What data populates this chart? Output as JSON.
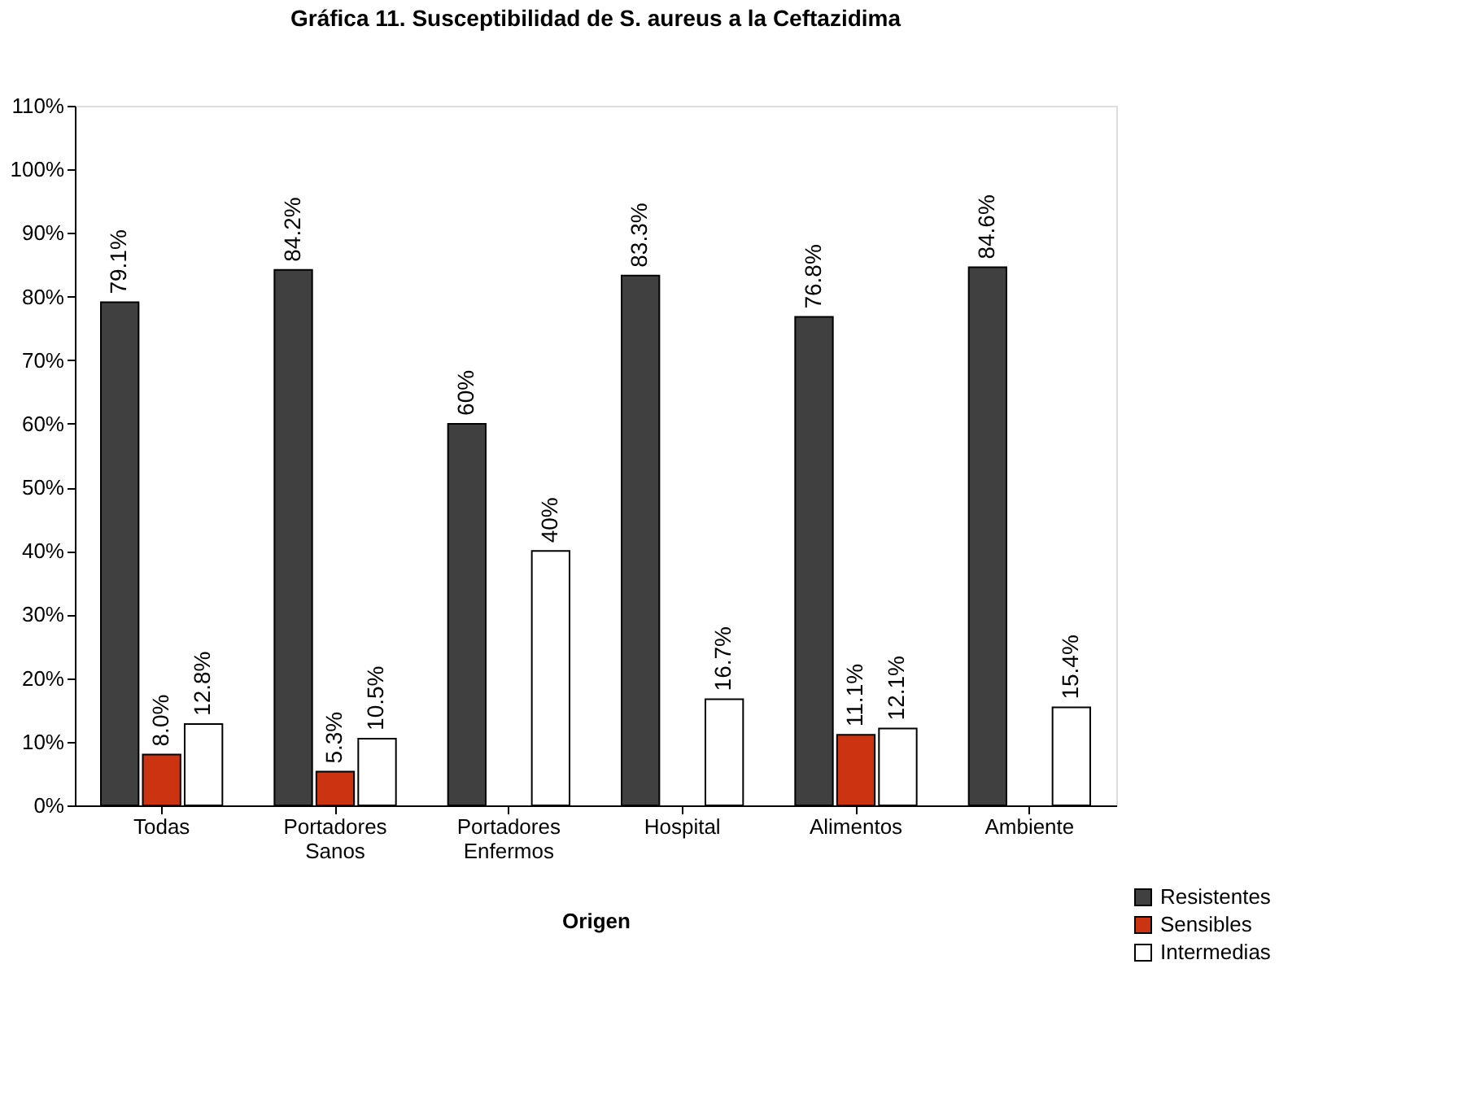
{
  "chart_data": {
    "type": "bar",
    "title": "Gráfica 11. Susceptibilidad de S. aureus a la Ceftazidima",
    "xlabel": "Origen",
    "categories": [
      "Todas",
      "Portadores Sanos",
      "Portadores Enfermos",
      "Hospital",
      "Alimentos",
      "Ambiente"
    ],
    "series": [
      {
        "name": "Resistentes",
        "color": "#404040",
        "values": [
          79.1,
          84.2,
          60,
          83.3,
          76.8,
          84.6
        ],
        "value_labels": [
          "79.1%",
          "84.2%",
          "60%",
          "83.3%",
          "76.8%",
          "84.6%"
        ]
      },
      {
        "name": "Sensibles",
        "color": "#cc3311",
        "values": [
          8.0,
          5.3,
          null,
          null,
          11.1,
          null
        ],
        "value_labels": [
          "8.0%",
          "5.3%",
          null,
          null,
          "11.1%",
          null
        ]
      },
      {
        "name": "Intermedias",
        "color": "#ffffff",
        "values": [
          12.8,
          10.5,
          40,
          16.7,
          12.1,
          15.4
        ],
        "value_labels": [
          "12.8%",
          "10.5%",
          "40%",
          "16.7%",
          "12.1%",
          "15.4%"
        ]
      }
    ],
    "ylim": [
      0,
      110
    ],
    "yticks": [
      {
        "value": 0,
        "label": "0%"
      },
      {
        "value": 10,
        "label": "10%"
      },
      {
        "value": 20,
        "label": "20%"
      },
      {
        "value": 30,
        "label": "30%"
      },
      {
        "value": 40,
        "label": "40%"
      },
      {
        "value": 50,
        "label": "50%"
      },
      {
        "value": 60,
        "label": "60%"
      },
      {
        "value": 70,
        "label": "70%"
      },
      {
        "value": 80,
        "label": "80%"
      },
      {
        "value": 90,
        "label": "90%"
      },
      {
        "value": 100,
        "label": "100%"
      },
      {
        "value": 110,
        "label": "110%"
      }
    ],
    "legend": "bottom right"
  }
}
